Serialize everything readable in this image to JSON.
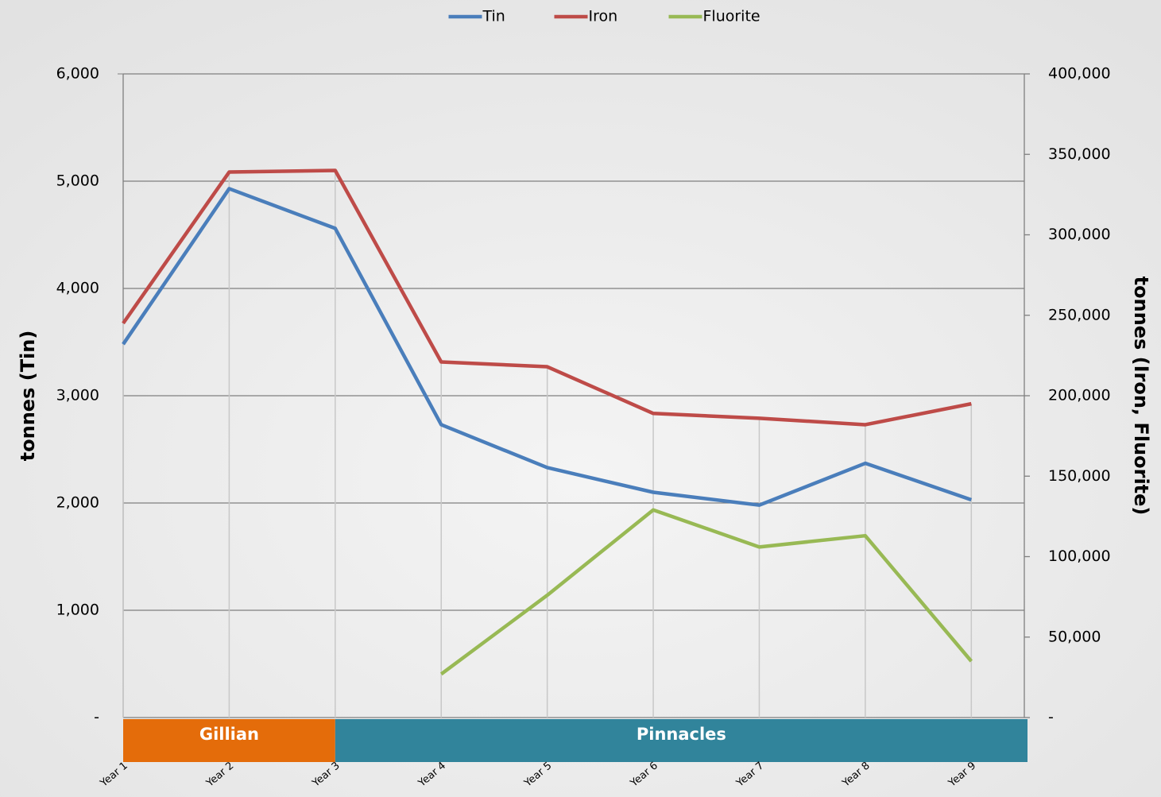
{
  "chart_data": {
    "type": "line",
    "categories": [
      "Year 1",
      "Year 2",
      "Year 3",
      "Year 4",
      "Year 5",
      "Year 6",
      "Year 7",
      "Year 8",
      "Year 9"
    ],
    "series": [
      {
        "name": "Tin",
        "color": "#4a7ebb",
        "values": [
          3480,
          4930,
          4560,
          2730,
          2330,
          2100,
          1980,
          2370,
          2030
        ]
      },
      {
        "name": "Iron",
        "color": "#be4b48",
        "axis": "y2",
        "values": [
          245000,
          339000,
          340000,
          221000,
          218000,
          189000,
          186000,
          182000,
          195000
        ]
      },
      {
        "name": "Fluorite",
        "color": "#98b954",
        "axis": "y2",
        "values": [
          null,
          null,
          null,
          27000,
          76000,
          129000,
          106000,
          113000,
          35000
        ]
      }
    ],
    "ylabel": "tonnes  (Tin)",
    "y2label": "tonnes (Iron, Fluorite)",
    "ylim": [
      0,
      6000
    ],
    "yticks": [
      {
        "value": 0,
        "label": "-"
      },
      {
        "value": 1000,
        "label": "1,000"
      },
      {
        "value": 2000,
        "label": "2,000"
      },
      {
        "value": 3000,
        "label": "3,000"
      },
      {
        "value": 4000,
        "label": "4,000"
      },
      {
        "value": 5000,
        "label": "5,000"
      },
      {
        "value": 6000,
        "label": "6,000"
      }
    ],
    "y2lim": [
      0,
      400000
    ],
    "y2ticks": [
      {
        "value": 0,
        "label": "-"
      },
      {
        "value": 50000,
        "label": "50,000"
      },
      {
        "value": 100000,
        "label": "100,000"
      },
      {
        "value": 150000,
        "label": "150,000"
      },
      {
        "value": 200000,
        "label": "200,000"
      },
      {
        "value": 250000,
        "label": "250,000"
      },
      {
        "value": 300000,
        "label": "300,000"
      },
      {
        "value": 350000,
        "label": "350,000"
      },
      {
        "value": 400000,
        "label": "400,000"
      }
    ],
    "grid": true,
    "legend": "top",
    "regions": [
      {
        "label": "Gillian",
        "from": "Year 1",
        "to": "Year 3",
        "color": "#e46c0a"
      },
      {
        "label": "Pinnacles",
        "from": "Year 3",
        "to": "Year 9",
        "color": "#31849b"
      }
    ]
  }
}
